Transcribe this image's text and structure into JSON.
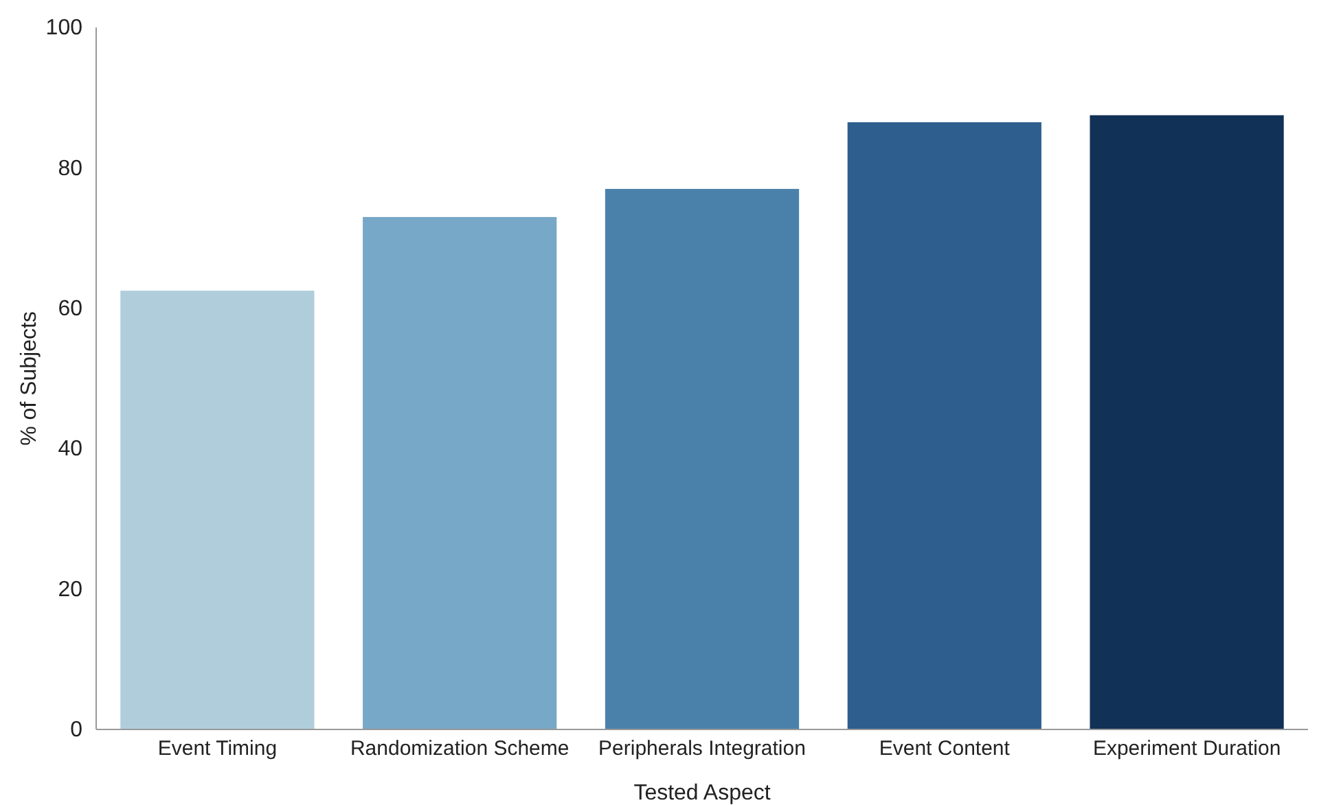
{
  "chart_data": {
    "type": "bar",
    "xlabel": "Tested Aspect",
    "ylabel": "% of Subjects",
    "categories": [
      "Event Timing",
      "Randomization Scheme",
      "Peripherals Integration",
      "Event Content",
      "Experiment Duration"
    ],
    "values": [
      62.5,
      73,
      77,
      86.5,
      87.5
    ],
    "colors": [
      "#b0cddc",
      "#78a8c7",
      "#4a81aa",
      "#2e5e8e",
      "#123156"
    ],
    "ylim": [
      0,
      100
    ],
    "yticks": [
      0,
      20,
      40,
      60,
      80,
      100
    ],
    "grid": false
  }
}
